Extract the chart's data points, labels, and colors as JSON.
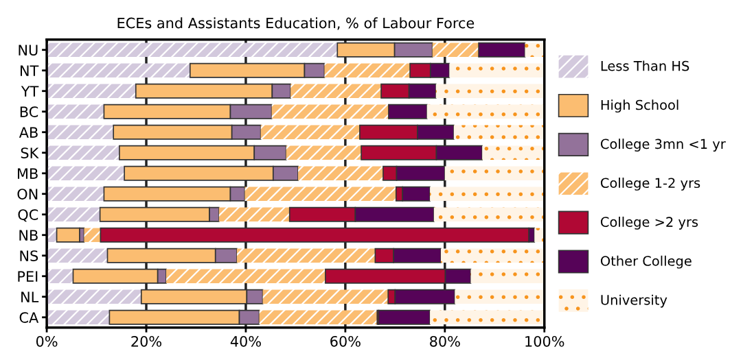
{
  "chart_data": {
    "type": "bar",
    "title": "ECEs and Assistants Education, % of Labour Force",
    "orientation": "horizontal",
    "stacked": true,
    "categories": [
      "NU",
      "NT",
      "YT",
      "BC",
      "AB",
      "SK",
      "MB",
      "ON",
      "QC",
      "NB",
      "NS",
      "PEI",
      "NL",
      "CA"
    ],
    "series": [
      {
        "name": "Less Than HS",
        "color": "#d3c9dd",
        "values": [
          58.4,
          28.8,
          17.9,
          11.5,
          13.4,
          14.6,
          15.6,
          11.5,
          10.7,
          2.0,
          12.2,
          5.3,
          19.0,
          12.6
        ]
      },
      {
        "name": "High School",
        "color": "#fbbd71",
        "values": [
          11.5,
          23.0,
          27.4,
          25.4,
          23.8,
          27.1,
          29.9,
          25.4,
          22.0,
          4.6,
          21.7,
          17.0,
          21.2,
          26.1
        ]
      },
      {
        "name": "College 3mn <1 yr",
        "color": "#93729a",
        "values": [
          7.6,
          4.0,
          3.7,
          8.3,
          5.8,
          6.4,
          5.0,
          2.9,
          1.9,
          0.9,
          4.3,
          1.7,
          3.2,
          4.0
        ]
      },
      {
        "name": "College 1-2 yrs",
        "color": "#fbbd71",
        "values": [
          9.3,
          17.2,
          18.2,
          23.5,
          19.9,
          15.1,
          17.1,
          30.4,
          14.2,
          3.3,
          27.8,
          32.0,
          25.2,
          23.7
        ]
      },
      {
        "name": "College >2 yrs",
        "color": "#b00834",
        "values": [
          0,
          4.1,
          5.6,
          0,
          11.6,
          15.1,
          2.7,
          1.3,
          13.2,
          86.1,
          3.7,
          24.1,
          1.4,
          0.3
        ]
      },
      {
        "name": "Other College",
        "color": "#560358",
        "values": [
          9.3,
          3.8,
          5.4,
          7.7,
          7.3,
          9.2,
          9.7,
          5.5,
          15.8,
          1.1,
          9.5,
          5.1,
          12.0,
          10.3
        ]
      },
      {
        "name": "University",
        "color": "#fff4e6",
        "values": [
          3.8,
          19.1,
          21.8,
          23.6,
          18.2,
          12.5,
          20.0,
          23.0,
          22.2,
          2.0,
          20.8,
          14.8,
          18.0,
          23.0
        ]
      }
    ],
    "xlim": [
      0,
      100
    ],
    "xticks": [
      {
        "value": 0,
        "label": "0%"
      },
      {
        "value": 20,
        "label": "20%"
      },
      {
        "value": 40,
        "label": "40%"
      },
      {
        "value": 60,
        "label": "60%"
      },
      {
        "value": 80,
        "label": "80%"
      },
      {
        "value": 100,
        "label": "100%"
      }
    ],
    "grid": "x",
    "legend": "right"
  }
}
